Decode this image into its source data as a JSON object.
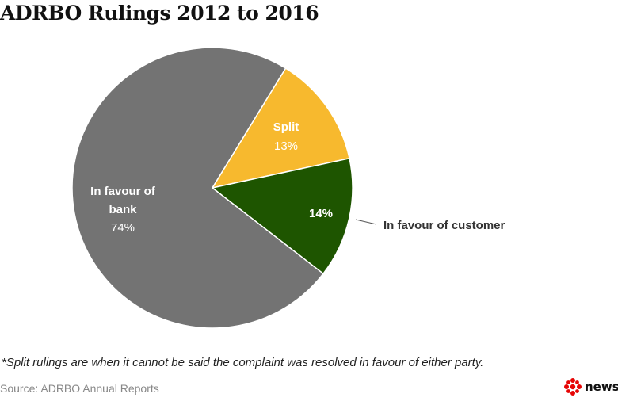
{
  "title": "ADRBO Rulings 2012 to 2016",
  "footnote": "*Split rulings are when it cannot be said the complaint was resolved in favour of either party.",
  "source": "Source: ADRBO Annual Reports",
  "logo": {
    "icon": "cbc-gem-icon",
    "text": "news",
    "color": "#e60505"
  },
  "chart_data": {
    "type": "pie",
    "title": "ADRBO Rulings 2012 to 2016",
    "slices": [
      {
        "key": "bank",
        "label_lines": [
          "In favour of",
          "bank"
        ],
        "value_label": "74%",
        "value": 74,
        "color": "#737373"
      },
      {
        "key": "split",
        "label_lines": [
          "Split"
        ],
        "value_label": "13%",
        "value": 13,
        "color": "#f7b92e"
      },
      {
        "key": "customer",
        "label_lines": [],
        "value_label": "14%",
        "value": 14,
        "color": "#1e5500",
        "callout": "In favour of customer"
      }
    ]
  }
}
